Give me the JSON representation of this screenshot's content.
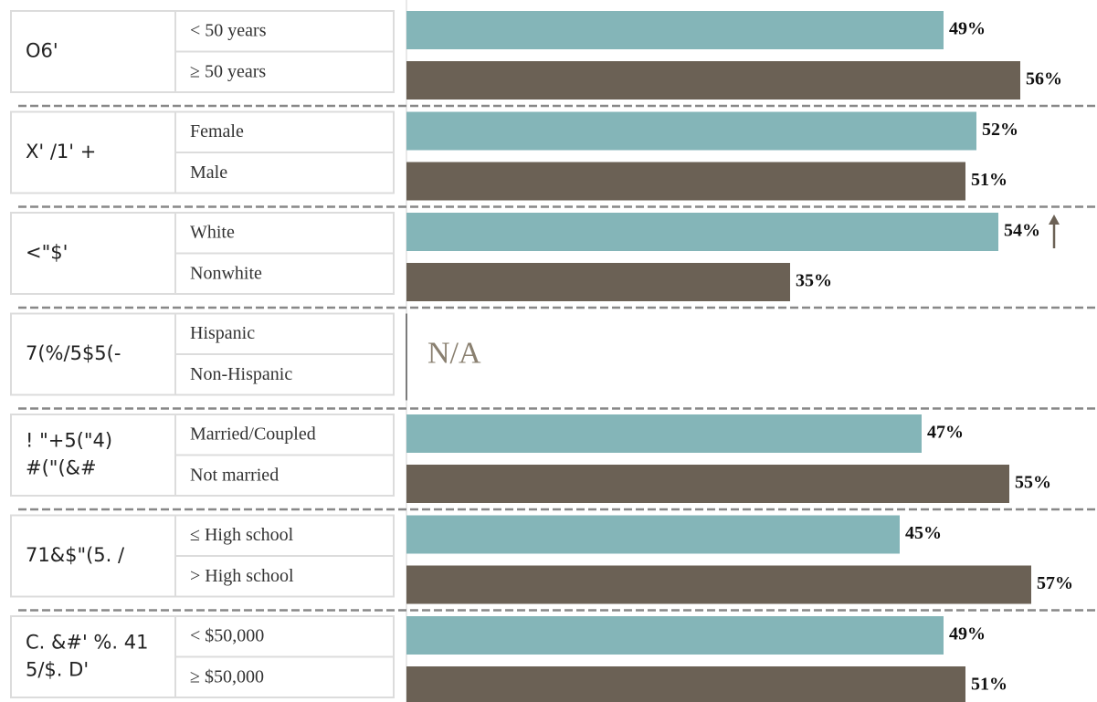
{
  "chart_data": {
    "type": "bar",
    "colors": [
      "#84b5b8",
      "#6b6155"
    ],
    "groups": [
      {
        "label": [
          "O6'"
        ],
        "categories": [
          "< 50 years",
          "≥ 50 years"
        ],
        "values": [
          49,
          56
        ],
        "value_labels": [
          "49%",
          "56%"
        ]
      },
      {
        "label": [
          "X' /1' +"
        ],
        "categories": [
          "Female",
          "Male"
        ],
        "values": [
          52,
          51
        ],
        "value_labels": [
          "52%",
          "51%"
        ]
      },
      {
        "label": [
          "<\"$'"
        ],
        "categories": [
          "White",
          "Nonwhite"
        ],
        "values": [
          54,
          35
        ],
        "value_labels": [
          "54%",
          "35%"
        ]
      },
      {
        "label": [
          "7(%/5$5(-"
        ],
        "categories": [
          "Hispanic",
          "Non-Hispanic"
        ],
        "values": [
          null,
          null
        ],
        "annotation": "N/A"
      },
      {
        "label": [
          "!  \"+5(\"4)",
          "#(\"(&#"
        ],
        "categories": [
          "Married/Coupled",
          "Not married"
        ],
        "values": [
          47,
          55
        ],
        "value_labels": [
          "47%",
          "55%"
        ]
      },
      {
        "label": [
          "71&$\"(5. /"
        ],
        "categories": [
          "≤ High school",
          "> High school"
        ],
        "values": [
          45,
          57
        ],
        "value_labels": [
          "45%",
          "57%"
        ]
      },
      {
        "label": [
          "C. &#' %. 41",
          "5/$. D'"
        ],
        "categories": [
          "< $50,000",
          "≥ $50,000"
        ],
        "values": [
          49,
          51
        ],
        "value_labels": [
          "49%",
          "51%"
        ]
      }
    ]
  }
}
